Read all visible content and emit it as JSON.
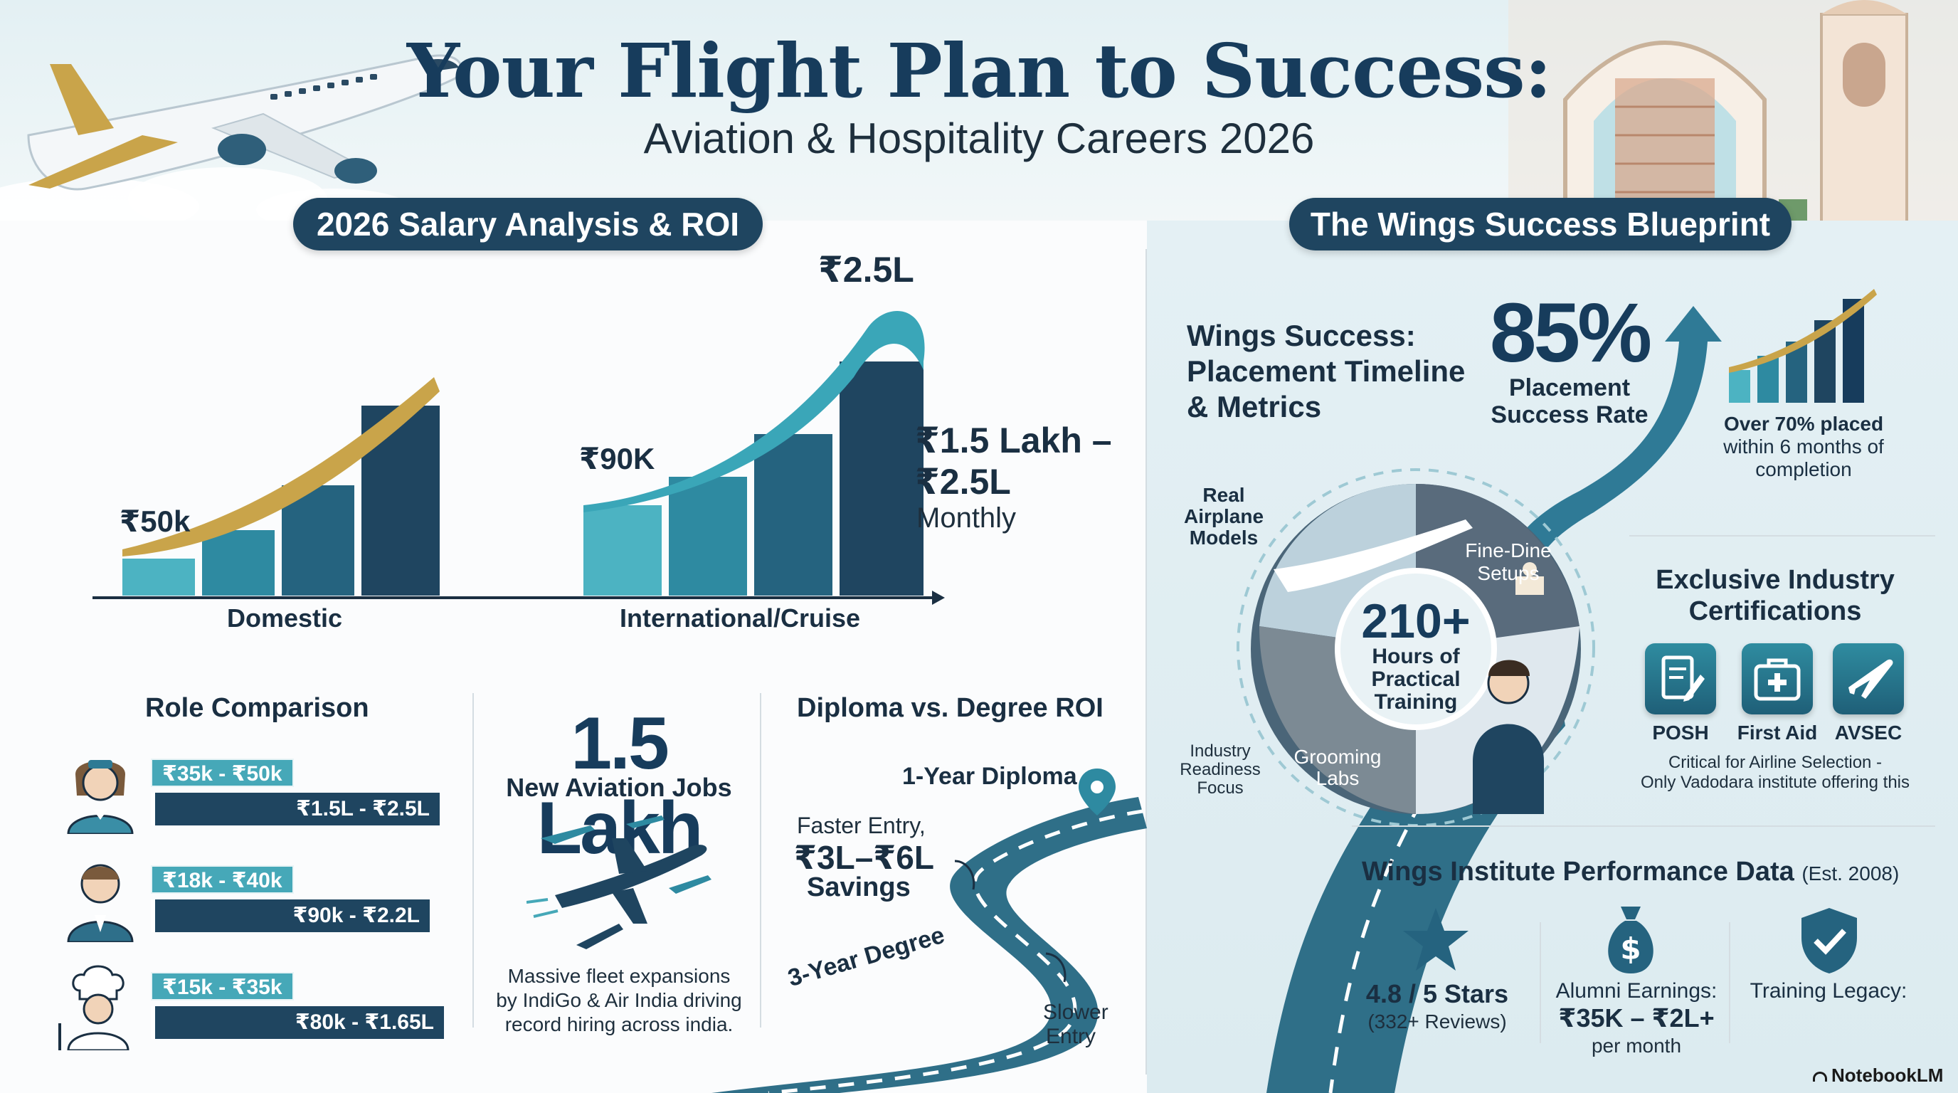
{
  "header": {
    "title": "Your Flight Plan to Success:",
    "subtitle": "Aviation & Hospitality Careers 2026"
  },
  "salary_section": {
    "pill": "2026 Salary Analysis & ROI",
    "domestic_start": "₹50k",
    "domestic_label": "Domestic",
    "intl_start": "₹90K",
    "intl_peak": "₹2.5L",
    "intl_label": "International/Cruise",
    "range_line1": "₹1.5 Lakh –",
    "range_line2": "₹2.5L",
    "range_line3": "Monthly"
  },
  "role_comparison": {
    "title": "Role Comparison",
    "rows": [
      {
        "icon": "flight-attendant-icon",
        "domestic": "₹35k - ₹50k",
        "international": "₹1.5L - ₹2.5L"
      },
      {
        "icon": "hotel-staff-icon",
        "domestic": "₹18k - ₹40k",
        "international": "₹90k - ₹2.2L"
      },
      {
        "icon": "chef-icon",
        "domestic": "₹15k - ₹35k",
        "international": "₹80k - ₹1.65L"
      }
    ]
  },
  "jobs": {
    "number": "1.5 Lakh",
    "label": "New Aviation Jobs",
    "desc_line1": "Massive fleet expansions",
    "desc_line2": "by IndiGo & Air India driving",
    "desc_line3": "record hiring across india."
  },
  "roi": {
    "title": "Diploma vs. Degree ROI",
    "diploma": "1-Year Diploma",
    "faster_line1": "Faster Entry,",
    "faster_line2": "₹3L–₹6L",
    "faster_line3": "Savings",
    "degree": "3-Year Degree",
    "slower_line1": "Slower",
    "slower_line2": "Entry"
  },
  "blueprint": {
    "pill": "The Wings Success Blueprint",
    "heading_line1": "Wings Success:",
    "heading_line2": "Placement Timeline",
    "heading_line3": "& Metrics",
    "rate": "85%",
    "rate_label_line1": "Placement",
    "rate_label_line2": "Success Rate",
    "placed_line1": "Over 70% placed",
    "placed_line2": "within 6 months of",
    "placed_line3": "completion",
    "hours": "210+",
    "hours_line1": "Hours of",
    "hours_line2": "Practical",
    "hours_line3": "Training",
    "models_line1": "Real",
    "models_line2": "Airplane",
    "models_line3": "Models",
    "finedine_line1": "Fine-Dine",
    "finedine_line2": "Setups",
    "grooming_line1": "Grooming",
    "grooming_line2": "Labs",
    "readiness_line1": "Industry",
    "readiness_line2": "Readiness",
    "readiness_line3": "Focus"
  },
  "certifications": {
    "title_line1": "Exclusive Industry",
    "title_line2": "Certifications",
    "items": [
      {
        "label": "POSH",
        "icon": "document-pen-icon"
      },
      {
        "label": "First Aid",
        "icon": "first-aid-kit-icon"
      },
      {
        "label": "AVSEC",
        "icon": "airplane-icon"
      }
    ],
    "note_line1": "Critical for Airline Selection -",
    "note_line2": "Only Vadodara institute offering this"
  },
  "performance": {
    "title": "Wings Institute Performance Data",
    "est": "(Est. 2008)",
    "stars": "4.8 / 5 Stars",
    "reviews": "(332+ Reviews)",
    "alumni_line1": "Alumni Earnings:",
    "alumni_line2": "₹35K – ₹2L+",
    "alumni_line3": "per month",
    "legacy": "Training Legacy:"
  },
  "brand": "NotebookLM",
  "colors": {
    "navy": "#1f4560",
    "teal": "#46a8b8",
    "gold": "#c9a44a",
    "title": "#173c5c"
  }
}
